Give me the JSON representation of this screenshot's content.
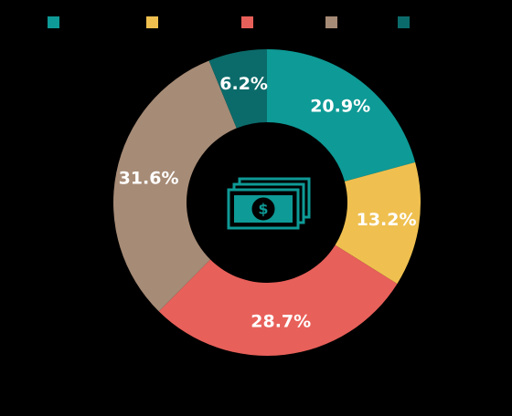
{
  "chart_data": {
    "type": "donut",
    "values": [
      20.9,
      13.2,
      28.7,
      31.6,
      6.2
    ],
    "value_labels": [
      "20.9%",
      "13.2%",
      "28.7%",
      "31.6%",
      "6.2%"
    ],
    "colors": [
      "#0e9a96",
      "#efc050",
      "#e8605a",
      "#a68b76",
      "#0b6b6a"
    ]
  }
}
